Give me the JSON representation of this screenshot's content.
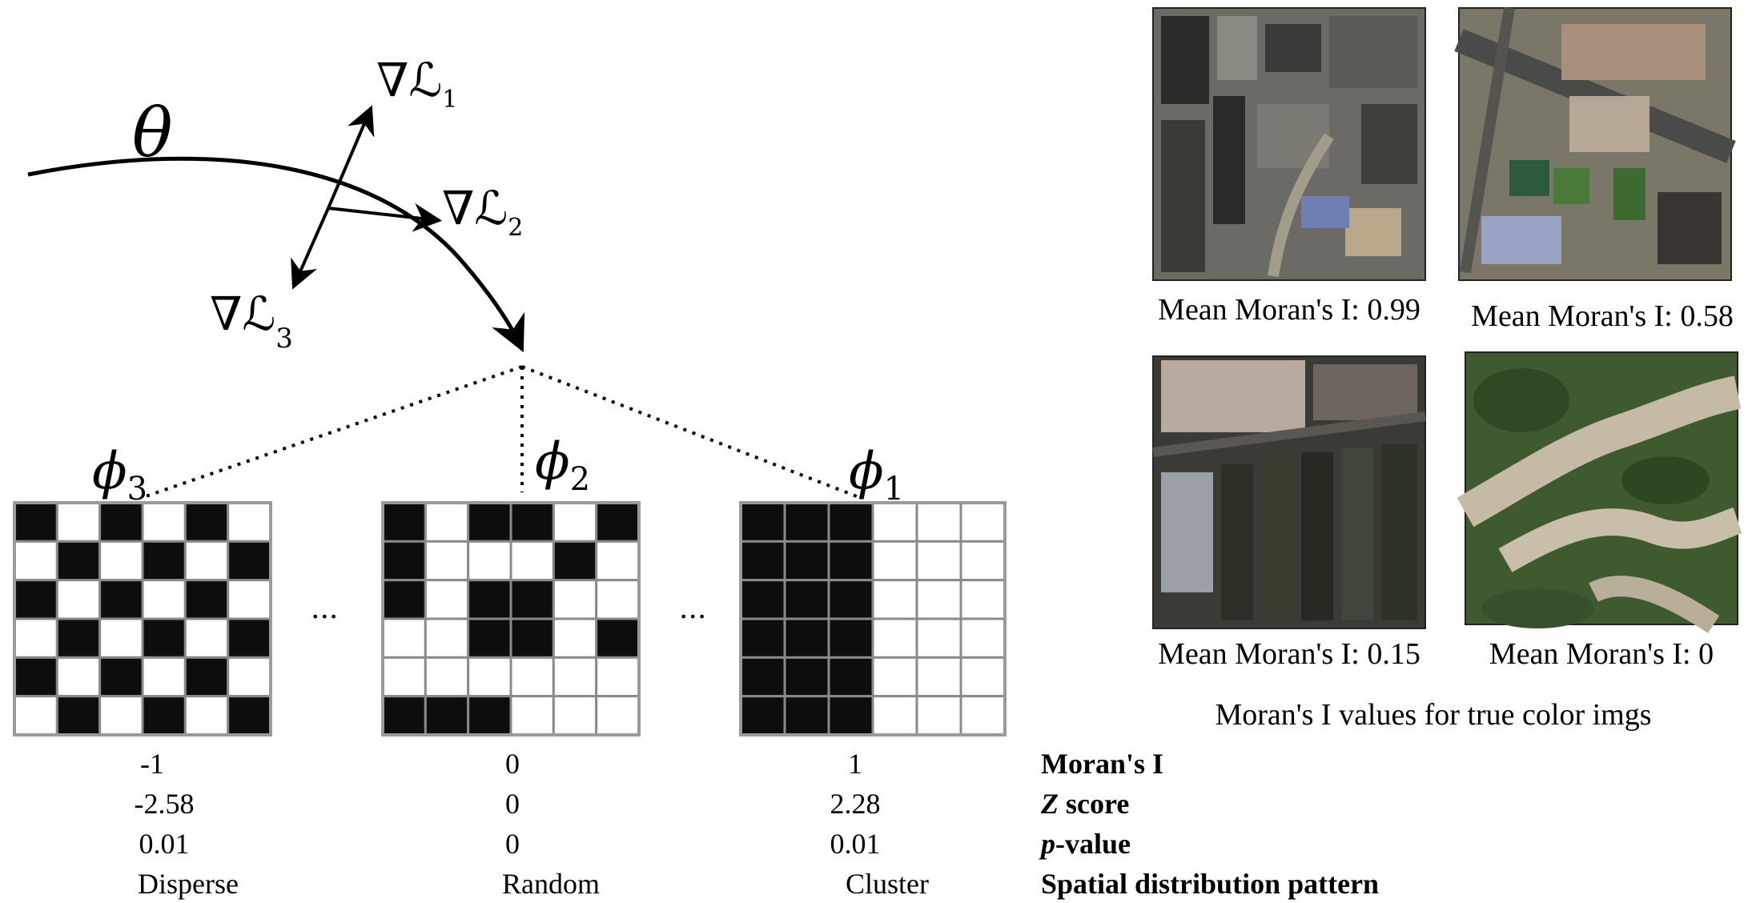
{
  "theta_symbol": "θ",
  "gradients": [
    {
      "symbol": "∇ℒ",
      "sub": "1"
    },
    {
      "symbol": "∇ℒ",
      "sub": "2"
    },
    {
      "symbol": "∇ℒ",
      "sub": "3"
    }
  ],
  "phi_labels": [
    {
      "symbol": "ϕ",
      "sub": "3"
    },
    {
      "symbol": "ϕ",
      "sub": "2"
    },
    {
      "symbol": "ϕ",
      "sub": "1"
    }
  ],
  "ellipsis": "...",
  "grids": {
    "disperse": [
      [
        1,
        0,
        1,
        0,
        1,
        0
      ],
      [
        0,
        1,
        0,
        1,
        0,
        1
      ],
      [
        1,
        0,
        1,
        0,
        1,
        0
      ],
      [
        0,
        1,
        0,
        1,
        0,
        1
      ],
      [
        1,
        0,
        1,
        0,
        1,
        0
      ],
      [
        0,
        1,
        0,
        1,
        0,
        1
      ]
    ],
    "random": [
      [
        1,
        0,
        1,
        1,
        0,
        1
      ],
      [
        1,
        0,
        0,
        0,
        1,
        0
      ],
      [
        1,
        0,
        1,
        1,
        0,
        0
      ],
      [
        0,
        0,
        1,
        1,
        0,
        1
      ],
      [
        0,
        0,
        0,
        0,
        0,
        0
      ],
      [
        1,
        1,
        1,
        0,
        0,
        0
      ]
    ],
    "cluster": [
      [
        1,
        1,
        1,
        0,
        0,
        0
      ],
      [
        1,
        1,
        1,
        0,
        0,
        0
      ],
      [
        1,
        1,
        1,
        0,
        0,
        0
      ],
      [
        1,
        1,
        1,
        0,
        0,
        0
      ],
      [
        1,
        1,
        1,
        0,
        0,
        0
      ],
      [
        1,
        1,
        1,
        0,
        0,
        0
      ]
    ]
  },
  "columns": [
    {
      "morans_i": "-1",
      "z_score": "-2.58",
      "p_value": "0.01",
      "pattern": "Disperse"
    },
    {
      "morans_i": "0",
      "z_score": "0",
      "p_value": "0",
      "pattern": "Random"
    },
    {
      "morans_i": "1",
      "z_score": "2.28",
      "p_value": "0.01",
      "pattern": "Cluster"
    }
  ],
  "row_labels": {
    "morans_i": "Moran's I",
    "z_score_italic": "Z",
    "z_score_rest": " score",
    "p_value_italic": "p",
    "p_value_rest": "-value",
    "pattern": "Spatial distribution pattern"
  },
  "satellite_images": [
    {
      "caption": "Mean Moran's I: 0.99",
      "scene": "dense-urban"
    },
    {
      "caption": "Mean Moran's I: 0.58",
      "scene": "mixed-urban"
    },
    {
      "caption": "Mean Moran's I: 0.15",
      "scene": "farmland"
    },
    {
      "caption": "Mean Moran's I: 0",
      "scene": "forest"
    }
  ],
  "panel_caption": "Moran's I values for true color imgs"
}
